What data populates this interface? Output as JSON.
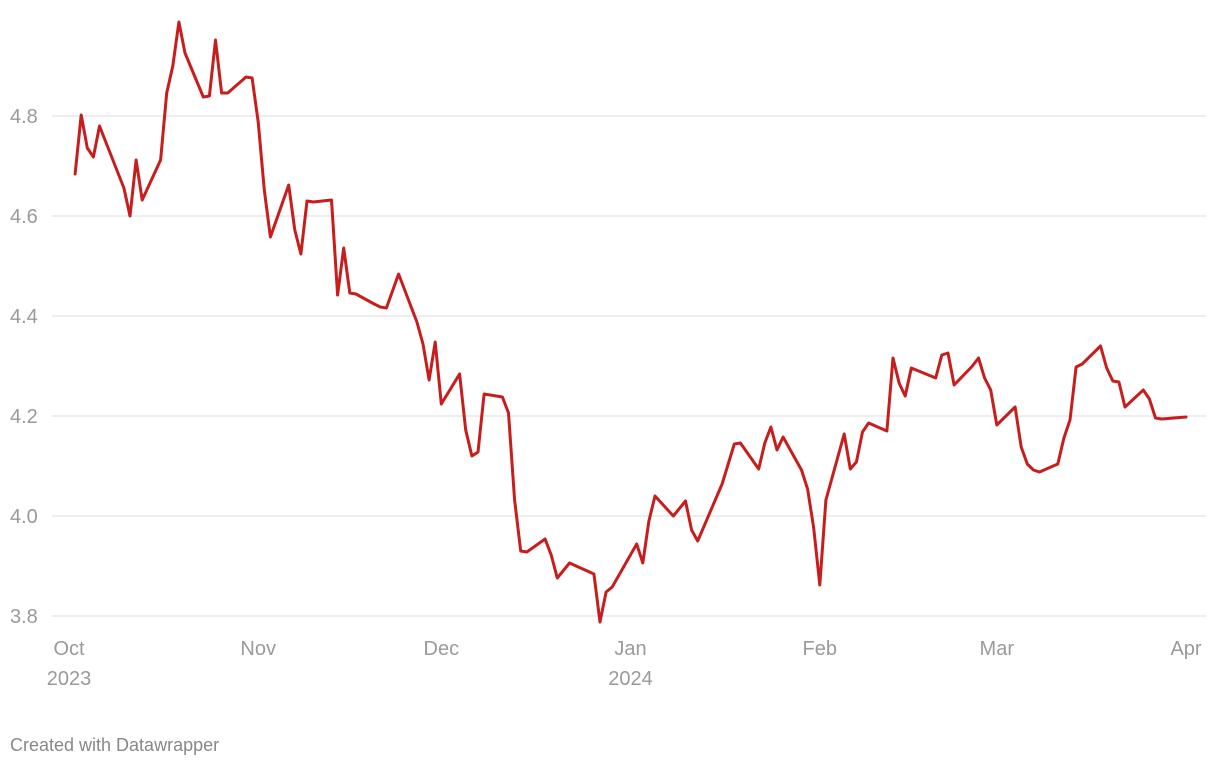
{
  "chart_data": {
    "type": "line",
    "color": "#c71e1d",
    "grid": true,
    "x": [
      1,
      2,
      3,
      4,
      5,
      9,
      10,
      11,
      12,
      15,
      16,
      17,
      18,
      19,
      22,
      23,
      24,
      25,
      26,
      29,
      30,
      31,
      32,
      33,
      36,
      37,
      38,
      39,
      40,
      43,
      44,
      45,
      46,
      47,
      50,
      51,
      52,
      54,
      57,
      58,
      59,
      60,
      61,
      64,
      65,
      66,
      67,
      68,
      71,
      72,
      73,
      74,
      75,
      78,
      79,
      80,
      82,
      86,
      87,
      88,
      89,
      93,
      94,
      95,
      96,
      99,
      101,
      102,
      103,
      107,
      109,
      110,
      113,
      114,
      115,
      116,
      117,
      120,
      121,
      122,
      123,
      124,
      127,
      128,
      129,
      130,
      131,
      134,
      135,
      136,
      137,
      138,
      142,
      143,
      144,
      145,
      148,
      149,
      150,
      151,
      152,
      155,
      156,
      157,
      158,
      159,
      162,
      163,
      164,
      165,
      166,
      169,
      170,
      171,
      172,
      173,
      176,
      177,
      178,
      179,
      183
    ],
    "values": [
      4.684,
      4.802,
      4.736,
      4.718,
      4.78,
      4.656,
      4.6,
      4.712,
      4.632,
      4.712,
      4.846,
      4.9,
      4.988,
      4.926,
      4.838,
      4.84,
      4.952,
      4.846,
      4.846,
      4.878,
      4.876,
      4.788,
      4.652,
      4.558,
      4.662,
      4.572,
      4.524,
      4.63,
      4.628,
      4.632,
      4.442,
      4.536,
      4.446,
      4.444,
      4.424,
      4.418,
      4.416,
      4.484,
      4.388,
      4.344,
      4.272,
      4.348,
      4.224,
      4.284,
      4.172,
      4.12,
      4.128,
      4.244,
      4.238,
      4.206,
      4.032,
      3.93,
      3.928,
      3.954,
      3.922,
      3.876,
      3.906,
      3.884,
      3.788,
      3.848,
      3.858,
      3.944,
      3.906,
      3.99,
      4.04,
      4.0,
      4.03,
      3.972,
      3.95,
      4.064,
      4.144,
      4.146,
      4.094,
      4.146,
      4.178,
      4.132,
      4.158,
      4.092,
      4.054,
      3.976,
      3.862,
      4.032,
      4.164,
      4.094,
      4.108,
      4.168,
      4.186,
      4.17,
      4.316,
      4.266,
      4.24,
      4.296,
      4.276,
      4.322,
      4.326,
      4.262,
      4.3,
      4.316,
      4.276,
      4.252,
      4.182,
      4.218,
      4.138,
      4.104,
      4.092,
      4.088,
      4.104,
      4.156,
      4.192,
      4.298,
      4.304,
      4.34,
      4.296,
      4.27,
      4.268,
      4.218,
      4.252,
      4.234,
      4.196,
      4.194,
      4.198
    ],
    "xlim": [
      0,
      183
    ],
    "xticks": [
      {
        "value": 0,
        "label": "Oct 2023"
      },
      {
        "value": 31,
        "label": "Nov"
      },
      {
        "value": 61,
        "label": "Dec"
      },
      {
        "value": 92,
        "label": "Jan 2024"
      },
      {
        "value": 123,
        "label": "Feb"
      },
      {
        "value": 152,
        "label": "Mar"
      },
      {
        "value": 183,
        "label": "Apr"
      }
    ],
    "ylim": [
      3.75,
      5.0
    ],
    "yticks": [
      {
        "value": 3.8,
        "label": "3.8"
      },
      {
        "value": 4.0,
        "label": "4.0"
      },
      {
        "value": 4.2,
        "label": "4.2"
      },
      {
        "value": 4.4,
        "label": "4.4"
      },
      {
        "value": 4.6,
        "label": "4.6"
      },
      {
        "value": 4.8,
        "label": "4.8"
      }
    ],
    "source": "Created with Datawrapper"
  }
}
